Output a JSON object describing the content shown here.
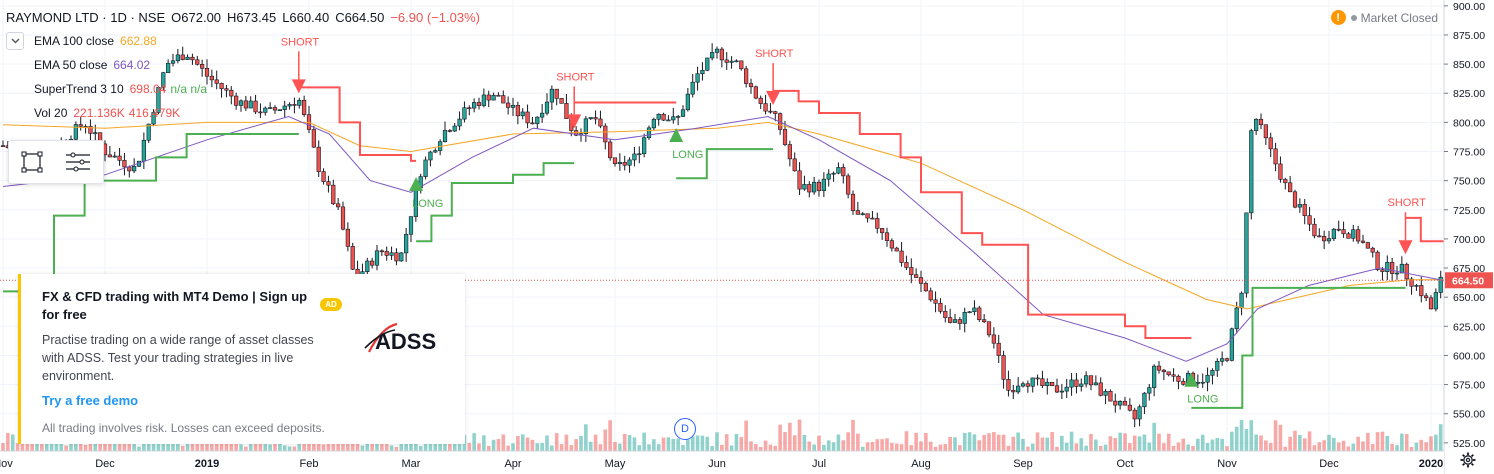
{
  "header": {
    "symbol": "RAYMOND LTD · 1D · NSE",
    "open": "O672.00",
    "high": "H673.45",
    "low": "L660.40",
    "close": "C664.50",
    "change": "−6.90 (−1.03%)"
  },
  "indicators": [
    {
      "name": "EMA 100 close",
      "value": "662.88",
      "color": "#f5a623"
    },
    {
      "name": "EMA 50 close",
      "value": "664.02",
      "color": "#7e57c2"
    },
    {
      "name": "SuperTrend 3 10",
      "value": "698.04",
      "extra": "n/a  n/a",
      "color": "#ef5350"
    },
    {
      "name": "Vol 20",
      "value": "221.136K",
      "extra": "416.479K",
      "color": "#ef5350"
    }
  ],
  "toolbar": {
    "tools": [
      "rectangle-select-icon",
      "list-lines-icon"
    ]
  },
  "market_status": {
    "label": "Market Closed",
    "icon": "warning-icon"
  },
  "ad": {
    "title": "FX & CFD trading with MT4 Demo | Sign up for free",
    "badge": "AD",
    "description": "Practise trading on a wide range of asset classes with ADSS. Test your trading strategies in live environment.",
    "link": "Try a free demo",
    "disclaimer": "All trading involves risk. Losses can exceed deposits.",
    "logo": "ADSS"
  },
  "date_marker": "D",
  "colors": {
    "up": "#26a69a",
    "down": "#ef5350",
    "st_up": "#4caf50",
    "st_down": "#ff5252",
    "ema100": "#f5a623",
    "ema50": "#7e57c2"
  },
  "chart_data": {
    "type": "candlestick",
    "y_ticks": [
      525,
      550,
      575,
      600,
      625,
      650,
      675,
      700,
      725,
      750,
      775,
      800,
      825,
      850,
      875,
      900
    ],
    "y_tick_labels": [
      "525.00",
      "550.00",
      "575.00",
      "600.00",
      "625.00",
      "650.00",
      "675.00",
      "700.00",
      "725.00",
      "750.00",
      "775.00",
      "800.00",
      "825.00",
      "850.00",
      "875.00",
      "900.00"
    ],
    "ylim": [
      518,
      905
    ],
    "x_labels": [
      "Nov",
      "Dec",
      "2019",
      "Feb",
      "Mar",
      "Apr",
      "May",
      "Jun",
      "Jul",
      "Aug",
      "Sep",
      "Oct",
      "Nov",
      "Dec",
      "2020"
    ],
    "last_price": 664.5,
    "last_price_label": "664.50",
    "signals": [
      {
        "type": "SHORT",
        "label": "SHORT",
        "month": 2.9,
        "price": 830
      },
      {
        "type": "LONG",
        "label": "LONG",
        "month": 4.05,
        "price": 748
      },
      {
        "type": "SHORT",
        "label": "SHORT",
        "month": 5.6,
        "price": 800
      },
      {
        "type": "LONG",
        "label": "LONG",
        "month": 6.6,
        "price": 790
      },
      {
        "type": "SHORT",
        "label": "SHORT",
        "month": 7.55,
        "price": 820
      },
      {
        "type": "LONG",
        "label": "LONG",
        "month": 11.65,
        "price": 580
      },
      {
        "type": "SHORT",
        "label": "SHORT",
        "month": 13.75,
        "price": 692
      }
    ],
    "price_path": [
      [
        0,
        780
      ],
      [
        0.4,
        770
      ],
      [
        0.8,
        800
      ],
      [
        1.0,
        775
      ],
      [
        1.3,
        760
      ],
      [
        1.6,
        850
      ],
      [
        1.8,
        860
      ],
      [
        2.0,
        840
      ],
      [
        2.3,
        818
      ],
      [
        2.6,
        808
      ],
      [
        2.9,
        820
      ],
      [
        3.1,
        760
      ],
      [
        3.3,
        720
      ],
      [
        3.45,
        665
      ],
      [
        3.7,
        690
      ],
      [
        3.9,
        685
      ],
      [
        4.1,
        760
      ],
      [
        4.3,
        790
      ],
      [
        4.6,
        815
      ],
      [
        4.8,
        825
      ],
      [
        5.0,
        810
      ],
      [
        5.2,
        800
      ],
      [
        5.4,
        830
      ],
      [
        5.6,
        790
      ],
      [
        5.8,
        805
      ],
      [
        6.0,
        760
      ],
      [
        6.2,
        770
      ],
      [
        6.4,
        810
      ],
      [
        6.6,
        800
      ],
      [
        6.8,
        840
      ],
      [
        7.0,
        860
      ],
      [
        7.2,
        850
      ],
      [
        7.4,
        820
      ],
      [
        7.6,
        800
      ],
      [
        7.8,
        745
      ],
      [
        8.0,
        745
      ],
      [
        8.2,
        760
      ],
      [
        8.35,
        720
      ],
      [
        8.6,
        710
      ],
      [
        8.9,
        670
      ],
      [
        9.1,
        650
      ],
      [
        9.3,
        625
      ],
      [
        9.5,
        640
      ],
      [
        9.7,
        615
      ],
      [
        9.85,
        570
      ],
      [
        10.0,
        580
      ],
      [
        10.3,
        570
      ],
      [
        10.6,
        580
      ],
      [
        10.9,
        560
      ],
      [
        11.1,
        545
      ],
      [
        11.3,
        590
      ],
      [
        11.5,
        580
      ],
      [
        11.8,
        580
      ],
      [
        12.0,
        600
      ],
      [
        12.15,
        660
      ],
      [
        12.25,
        810
      ],
      [
        12.4,
        780
      ],
      [
        12.6,
        740
      ],
      [
        12.9,
        700
      ],
      [
        13.1,
        710
      ],
      [
        13.3,
        700
      ],
      [
        13.5,
        675
      ],
      [
        13.7,
        675
      ],
      [
        13.9,
        655
      ],
      [
        14.0,
        640
      ],
      [
        14.1,
        665
      ],
      [
        14.2,
        664.5
      ]
    ],
    "supertrend": [
      {
        "dir": "up",
        "pts": [
          [
            0,
            655
          ],
          [
            0.25,
            665
          ],
          [
            0.5,
            720
          ],
          [
            0.8,
            750
          ],
          [
            1.0,
            750
          ],
          [
            1.5,
            770
          ],
          [
            1.8,
            790
          ],
          [
            2.6,
            790
          ],
          [
            2.9,
            790
          ]
        ]
      },
      {
        "dir": "down",
        "pts": [
          [
            2.9,
            830
          ],
          [
            3.1,
            830
          ],
          [
            3.3,
            800
          ],
          [
            3.5,
            772
          ],
          [
            3.8,
            772
          ],
          [
            4.0,
            767
          ],
          [
            4.05,
            767
          ]
        ]
      },
      {
        "dir": "up",
        "pts": [
          [
            4.05,
            698
          ],
          [
            4.2,
            720
          ],
          [
            4.4,
            748
          ],
          [
            4.8,
            748
          ],
          [
            5.0,
            755
          ],
          [
            5.3,
            765
          ],
          [
            5.6,
            765
          ]
        ]
      },
      {
        "dir": "down",
        "pts": [
          [
            5.6,
            817
          ],
          [
            6.0,
            817
          ],
          [
            6.6,
            817
          ]
        ]
      },
      {
        "dir": "up",
        "pts": [
          [
            6.6,
            752
          ],
          [
            6.8,
            752
          ],
          [
            6.9,
            777
          ],
          [
            7.55,
            777
          ]
        ]
      },
      {
        "dir": "down",
        "pts": [
          [
            7.55,
            827
          ],
          [
            7.8,
            818
          ],
          [
            8.0,
            808
          ],
          [
            8.4,
            790
          ],
          [
            8.8,
            770
          ],
          [
            9.0,
            740
          ],
          [
            9.4,
            705
          ],
          [
            9.6,
            695
          ],
          [
            9.8,
            695
          ],
          [
            10.05,
            635
          ],
          [
            10.8,
            635
          ],
          [
            11.0,
            625
          ],
          [
            11.2,
            615
          ],
          [
            11.65,
            615
          ]
        ]
      },
      {
        "dir": "up",
        "pts": [
          [
            11.65,
            555
          ],
          [
            12.0,
            555
          ],
          [
            12.15,
            600
          ],
          [
            12.25,
            658
          ],
          [
            13.0,
            658
          ],
          [
            13.75,
            658
          ]
        ]
      },
      {
        "dir": "down",
        "pts": [
          [
            13.75,
            718
          ],
          [
            13.9,
            698
          ],
          [
            14.2,
            698
          ]
        ]
      }
    ],
    "ema100": [
      [
        0,
        798
      ],
      [
        1.0,
        795
      ],
      [
        2.0,
        800
      ],
      [
        3.0,
        800
      ],
      [
        3.5,
        780
      ],
      [
        4.0,
        775
      ],
      [
        5.0,
        790
      ],
      [
        6.0,
        792
      ],
      [
        7.0,
        795
      ],
      [
        7.5,
        800
      ],
      [
        8.0,
        790
      ],
      [
        9.0,
        765
      ],
      [
        10.0,
        725
      ],
      [
        11.0,
        680
      ],
      [
        11.8,
        648
      ],
      [
        12.2,
        640
      ],
      [
        12.6,
        648
      ],
      [
        13.2,
        660
      ],
      [
        13.8,
        665
      ],
      [
        14.2,
        665
      ]
    ],
    "ema50": [
      [
        0,
        745
      ],
      [
        1.0,
        755
      ],
      [
        2.0,
        785
      ],
      [
        2.8,
        805
      ],
      [
        3.2,
        790
      ],
      [
        3.6,
        750
      ],
      [
        4.0,
        740
      ],
      [
        4.6,
        770
      ],
      [
        5.2,
        795
      ],
      [
        6.0,
        785
      ],
      [
        6.8,
        795
      ],
      [
        7.5,
        805
      ],
      [
        8.0,
        785
      ],
      [
        8.7,
        750
      ],
      [
        9.5,
        690
      ],
      [
        10.2,
        635
      ],
      [
        11.0,
        615
      ],
      [
        11.6,
        595
      ],
      [
        12.0,
        610
      ],
      [
        12.3,
        640
      ],
      [
        12.8,
        660
      ],
      [
        13.5,
        675
      ],
      [
        14.2,
        663
      ]
    ]
  }
}
